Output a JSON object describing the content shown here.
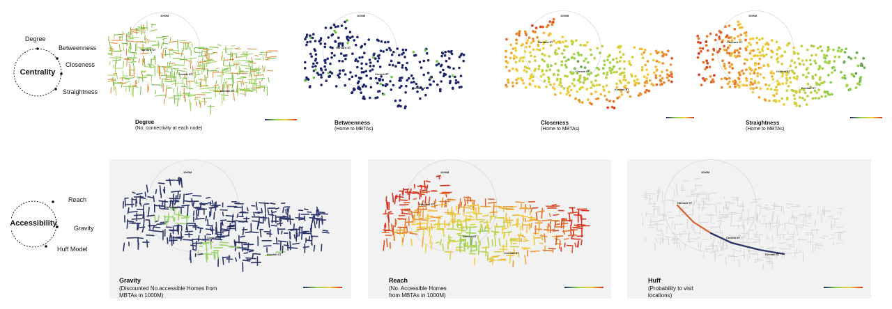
{
  "centrality": {
    "title": "Centrality",
    "items": [
      "Degree",
      "Betweenness",
      "Closeness",
      "Straightness"
    ]
  },
  "accessibility": {
    "title": "Accessibility",
    "items": [
      "Reach",
      "Gravity",
      "Huff Model"
    ]
  },
  "maps_top": [
    {
      "title": "Degree",
      "subtitle": "(No. connectivity at each node)"
    },
    {
      "title": "Betweenness",
      "subtitle": "(Home to MBTAs)"
    },
    {
      "title": "Closeness",
      "subtitle": "(Home to MBTAs)"
    },
    {
      "title": "Straightness",
      "subtitle": "(Home to MBTAs)"
    }
  ],
  "maps_bottom": [
    {
      "title": "Gravity",
      "subtitle_line1": "(Discounted No.accessible Homes from",
      "subtitle_line2": "MBTAs in 1000M)"
    },
    {
      "title": "Reach",
      "subtitle_line1": "(No. Accessible Homes",
      "subtitle_line2": "from MBTAs in 1000M)"
    },
    {
      "title": "Huff",
      "subtitle_line1": "(Probability to visit",
      "subtitle_line2": "locations)"
    }
  ],
  "map_tags": {
    "radius": "1000M",
    "harvard": "Harvard ST",
    "central": "Central ST",
    "kendall": "Kendall ST"
  },
  "colors": {
    "ramp_start": "#1a2a6c",
    "ramp_mid": "#8fd14f",
    "ramp_end": "#d7301f"
  }
}
